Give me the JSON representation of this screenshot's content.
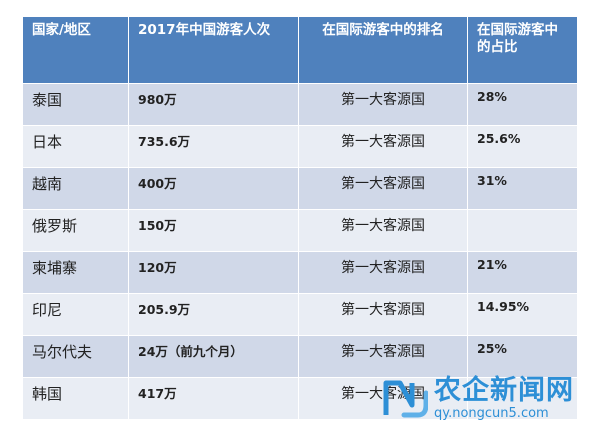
{
  "headers": [
    "国家/地区",
    "2017年中国游客人次",
    "在国际游客中的排名",
    "在国际游客中的占比"
  ],
  "rows": [
    {
      "country": "泰国",
      "visitors": "980万",
      "rank": "第一大客源国",
      "share": "28%"
    },
    {
      "country": "日本",
      "visitors": "735.6万",
      "rank": "第一大客源国",
      "share": "25.6%"
    },
    {
      "country": "越南",
      "visitors": "400万",
      "rank": "第一大客源国",
      "share": "31%"
    },
    {
      "country": "俄罗斯",
      "visitors": "150万",
      "rank": "第一大客源国",
      "share": ""
    },
    {
      "country": "柬埔寨",
      "visitors": "120万",
      "rank": "第一大客源国",
      "share": "21%"
    },
    {
      "country": "印尼",
      "visitors": "205.9万",
      "rank": "第一大客源国",
      "share": "14.95%"
    },
    {
      "country": "马尔代夫",
      "visitors": "24万（前九个月）",
      "rank": "第一大客源国",
      "share": "25%"
    },
    {
      "country": "韩国",
      "visitors": "417万",
      "rank": "第一大客源国",
      "share": ""
    }
  ],
  "watermark": {
    "title": "农企新闻网",
    "url": "qy.nongcun5.com"
  },
  "colors": {
    "header_bg": "#4f81bd",
    "row_odd": "#d0d8e8",
    "row_even": "#e9edf4",
    "watermark": "#2d8fd6"
  }
}
